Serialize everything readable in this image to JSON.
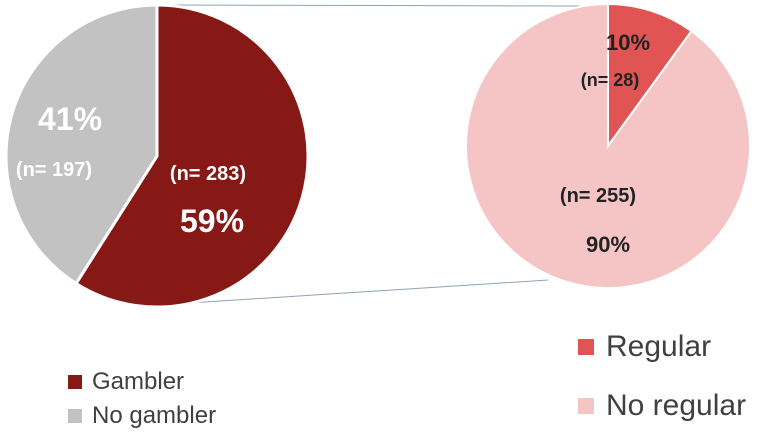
{
  "chart_data": [
    {
      "type": "pie",
      "slices": [
        {
          "label": "Gambler",
          "value": 59,
          "count_label": "(n= 283)",
          "pct_label": "59%",
          "color": "#861816"
        },
        {
          "label": "No gambler",
          "value": 41,
          "count_label": "(n= 197)",
          "pct_label": "41%",
          "color": "#c2c2c2"
        }
      ],
      "legend": [
        "Gambler",
        "No gambler"
      ],
      "legend_position": "bottom-left"
    },
    {
      "type": "pie",
      "slices": [
        {
          "label": "Regular",
          "value": 10,
          "count_label": "(n= 28)",
          "pct_label": "10%",
          "color": "#e05554"
        },
        {
          "label": "No regular",
          "value": 90,
          "count_label": "(n= 255)",
          "pct_label": "90%",
          "color": "#f5c5c5"
        }
      ],
      "legend": [
        "Regular",
        "No regular"
      ],
      "legend_position": "bottom-right"
    }
  ],
  "connector_color": "#8fa3b8"
}
